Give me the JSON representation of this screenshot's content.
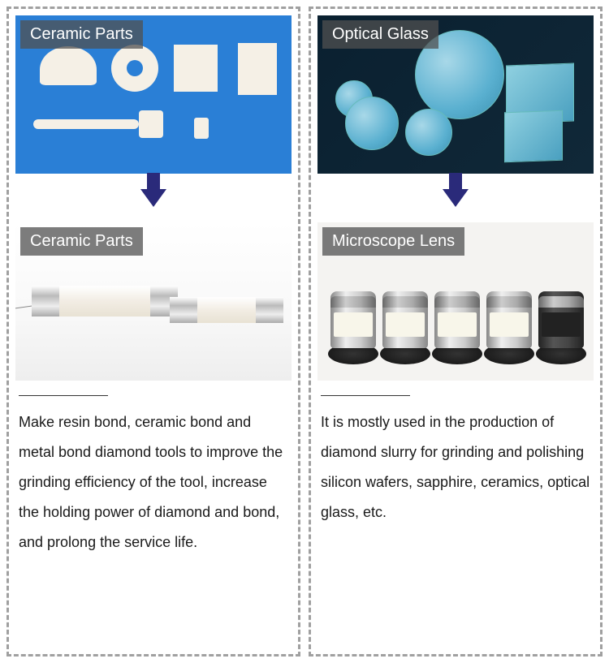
{
  "left": {
    "top_label": "Ceramic Parts",
    "bottom_label": "Ceramic Parts",
    "description": "Make resin bond, ceramic bond and metal bond diamond tools to improve the grinding efficiency of the tool, increase the holding power of diamond and bond, and prolong the service life.",
    "top_image": {
      "type": "infographic",
      "bg_color": "#2a7fd6",
      "part_color": "#f5f0e6"
    },
    "bottom_image": {
      "type": "infographic",
      "bg_color": "#ffffff",
      "metal_color": "#bbbbbb",
      "body_color": "#f2ede4"
    }
  },
  "right": {
    "top_label": "Optical Glass",
    "bottom_label": "Microscope Lens",
    "description": "It is mostly used in the production of diamond slurry for grinding and polishing silicon wafers, sapphire, ceramics, optical glass, etc.",
    "top_image": {
      "type": "infographic",
      "bg_color": "#0a2030",
      "glass_color": "#5ab0d0"
    },
    "bottom_image": {
      "type": "infographic",
      "bg_color": "#f4f3f1",
      "metal_color": "#cccccc",
      "base_color": "#111111",
      "lens_count": 5
    }
  },
  "style": {
    "border_color": "#a0a0a0",
    "arrow_color": "#2a2a7a",
    "label_bg": "rgba(80,80,80,0.75)",
    "label_text_color": "#ffffff",
    "label_fontsize": 20,
    "desc_fontsize": 18,
    "desc_color": "#1a1a1a",
    "desc_lineheight": 2.05
  }
}
